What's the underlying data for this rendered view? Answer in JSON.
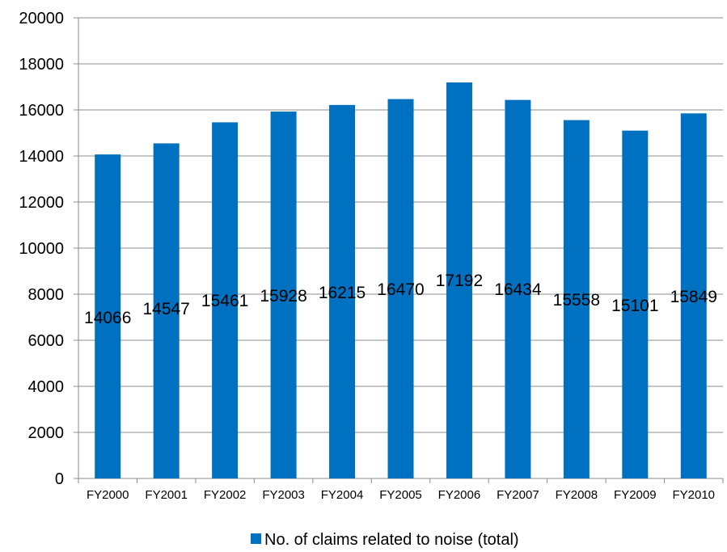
{
  "chart_data": {
    "type": "bar",
    "title": "",
    "xlabel": "",
    "ylabel": "",
    "categories": [
      "FY2000",
      "FY2001",
      "FY2002",
      "FY2003",
      "FY2004",
      "FY2005",
      "FY2006",
      "FY2007",
      "FY2008",
      "FY2009",
      "FY2010"
    ],
    "series": [
      {
        "name": "No. of claims related to noise (total)",
        "values": [
          14066,
          14547,
          15461,
          15928,
          16215,
          16470,
          17192,
          16434,
          15558,
          15101,
          15849
        ],
        "color": "#0070C0"
      }
    ],
    "data_labels": [
      "14066",
      "14547",
      "15461",
      "15928",
      "16215",
      "16470",
      "17192",
      "16434",
      "15558",
      "15101",
      "15849"
    ],
    "ylim": [
      0,
      20000
    ],
    "yticks": [
      "0",
      "2000",
      "4000",
      "6000",
      "8000",
      "10000",
      "12000",
      "14000",
      "16000",
      "18000",
      "20000"
    ],
    "grid": true,
    "legend_position": "bottom"
  }
}
